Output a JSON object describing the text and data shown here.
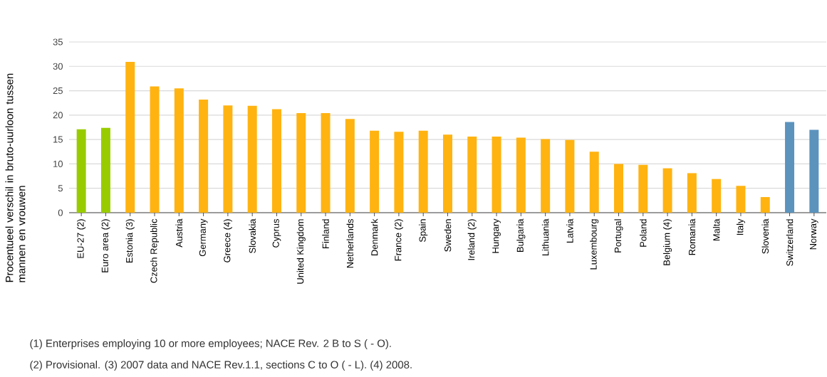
{
  "chart_data": {
    "type": "bar",
    "ylabel": "Procentueel verschil in bruto-uurloon tussen mannen en vrouwen",
    "categories": [
      "EU-27 (2)",
      "Euro area (2)",
      "Estonia (3)",
      "Czech Republic",
      "Austria",
      "Germany",
      "Greece (4)",
      "Slovakia",
      "Cyprus",
      "United Kingdom",
      "Finland",
      "Netherlands",
      "Denmark",
      "France (2)",
      "Spain",
      "Sweden",
      "Ireland (2)",
      "Hungary",
      "Bulgaria",
      "Lithuania",
      "Latvia",
      "Luxembourg",
      "Portugal",
      "Poland",
      "Belgium (4)",
      "Romania",
      "Malta",
      "Italy",
      "Slovenia",
      "Switzerland",
      "Norway"
    ],
    "values": [
      17.1,
      17.4,
      30.9,
      25.9,
      25.5,
      23.2,
      22.0,
      21.9,
      21.2,
      20.4,
      20.4,
      19.2,
      16.8,
      16.6,
      16.8,
      16.0,
      15.6,
      15.6,
      15.4,
      15.1,
      14.9,
      12.5,
      10.0,
      9.8,
      9.1,
      8.1,
      6.9,
      5.5,
      3.2,
      18.6,
      17.0
    ],
    "colors": [
      "#99cc00",
      "#99cc00",
      "#ffb311",
      "#ffb311",
      "#ffb311",
      "#ffb311",
      "#ffb311",
      "#ffb311",
      "#ffb311",
      "#ffb311",
      "#ffb311",
      "#ffb311",
      "#ffb311",
      "#ffb311",
      "#ffb311",
      "#ffb311",
      "#ffb311",
      "#ffb311",
      "#ffb311",
      "#ffb311",
      "#ffb311",
      "#ffb311",
      "#ffb311",
      "#ffb311",
      "#ffb311",
      "#ffb311",
      "#ffb311",
      "#ffb311",
      "#ffb311",
      "#5b93bd",
      "#5b93bd"
    ],
    "ylim": [
      0,
      35
    ],
    "yticks": [
      0,
      5,
      10,
      15,
      20,
      25,
      30,
      35
    ],
    "grid": "y",
    "annotations": [
      "(1) Enterprises employing 10 or more employees; NACE Rev. 2 B to S ( - O).",
      "(2) Provisional. (3) 2007 data and NACE Rev.1.1, sections C to O ( - L). (4) 2008."
    ]
  }
}
